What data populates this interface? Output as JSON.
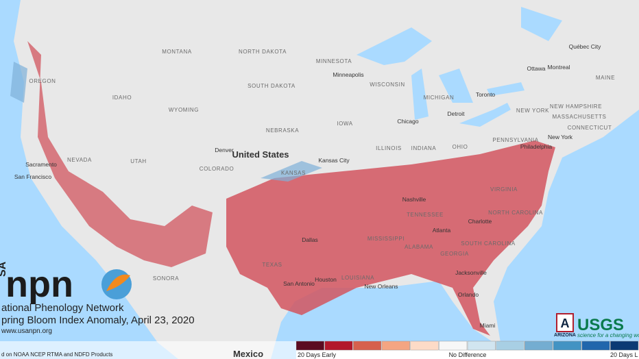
{
  "map": {
    "labels": [
      "United States",
      "MINNESOTA",
      "Minneapolis",
      "WISCONSIN",
      "MICHIGAN",
      "Toronto",
      "Ottawa",
      "Montreal",
      "Québec City",
      "MAINE",
      "NEW HAMPSHIRE",
      "NEW YORK",
      "MASSACHUSETTS",
      "CONNECTICUT",
      "New York",
      "PENNSYLVANIA",
      "Philadelphia",
      "NORTH DAKOTA",
      "SOUTH DAKOTA",
      "NEBRASKA",
      "IOWA",
      "Chicago",
      "Detroit",
      "ILLINOIS",
      "INDIANA",
      "OHIO",
      "Denver",
      "COLORADO",
      "KANSAS",
      "Kansas City",
      "Sacramento",
      "San Francisco",
      "NEVADA",
      "UTAH",
      "IDAHO",
      "OREGON",
      "MONTANA",
      "WYOMING",
      "VIRGINIA",
      "NORTH CAROLINA",
      "Charlotte",
      "SOUTH CAROLINA",
      "GEORGIA",
      "Atlanta",
      "ALABAMA",
      "MISSISSIPPI",
      "TENNESSEE",
      "Nashville",
      "LOUISIANA",
      "New Orleans",
      "Houston",
      "San Antonio",
      "Dallas",
      "TEXAS",
      "Jacksonville",
      "Orlando",
      "Miami",
      "SONORA",
      "Mexico"
    ]
  },
  "logo": {
    "side": "SA",
    "acronym": "npn",
    "network": "ational Phenology Network",
    "title": "pring Bloom Index Anomaly, April 23, 2020",
    "url": "www.usanpn.org",
    "footnote": "d on NOAA NCEP RTMA and NDFD Products"
  },
  "partners": {
    "arizona_mark": "A",
    "arizona": "ARIZONA",
    "usgs": "USGS",
    "usgs_tagline": "science for a changing wor"
  },
  "legend": {
    "colors": [
      "#5b0b20",
      "#b2182b",
      "#d6604d",
      "#f4a582",
      "#fddbc7",
      "#f7f7f7",
      "#d1e5f0",
      "#a8cfe4",
      "#74add1",
      "#4393c3",
      "#2166ac",
      "#0b3a74"
    ],
    "labels": [
      "20 Days Early",
      "No Difference",
      "20 Days L"
    ]
  }
}
